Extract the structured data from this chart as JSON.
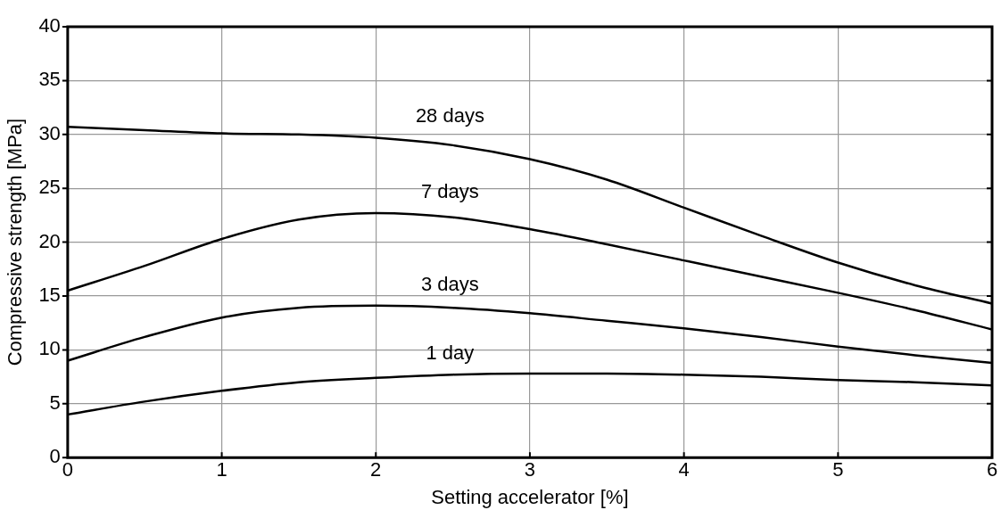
{
  "chart_data": {
    "type": "line",
    "xlabel": "Setting accelerator [%]",
    "ylabel": "Compressive strength [MPa]",
    "x": [
      0,
      0.5,
      1,
      1.5,
      2,
      2.5,
      3,
      3.5,
      4,
      4.5,
      5,
      5.5,
      6
    ],
    "series": [
      {
        "name": "28 days",
        "color": "#000000",
        "values": [
          30.7,
          30.4,
          30.1,
          30.0,
          29.7,
          29.0,
          27.7,
          25.8,
          23.2,
          20.6,
          18.1,
          16.0,
          14.3
        ]
      },
      {
        "name": "7 days",
        "color": "#000000",
        "values": [
          15.5,
          17.8,
          20.3,
          22.1,
          22.7,
          22.3,
          21.2,
          19.8,
          18.3,
          16.8,
          15.3,
          13.7,
          11.9
        ]
      },
      {
        "name": "3 days",
        "color": "#000000",
        "values": [
          9.0,
          11.2,
          13.0,
          13.9,
          14.1,
          13.9,
          13.4,
          12.7,
          12.0,
          11.2,
          10.3,
          9.5,
          8.8
        ]
      },
      {
        "name": "1 day",
        "color": "#000000",
        "values": [
          4.0,
          5.2,
          6.2,
          7.0,
          7.4,
          7.7,
          7.8,
          7.8,
          7.7,
          7.5,
          7.2,
          7.0,
          6.7
        ]
      }
    ],
    "xlim": [
      0,
      6
    ],
    "xticks": [
      0,
      1,
      2,
      3,
      4,
      5,
      6
    ],
    "ylim": [
      0,
      40
    ],
    "yticks": [
      0,
      5,
      10,
      15,
      20,
      25,
      30,
      35,
      40
    ],
    "grid": true,
    "legend": false,
    "marker": "none",
    "line_style": "solid"
  }
}
